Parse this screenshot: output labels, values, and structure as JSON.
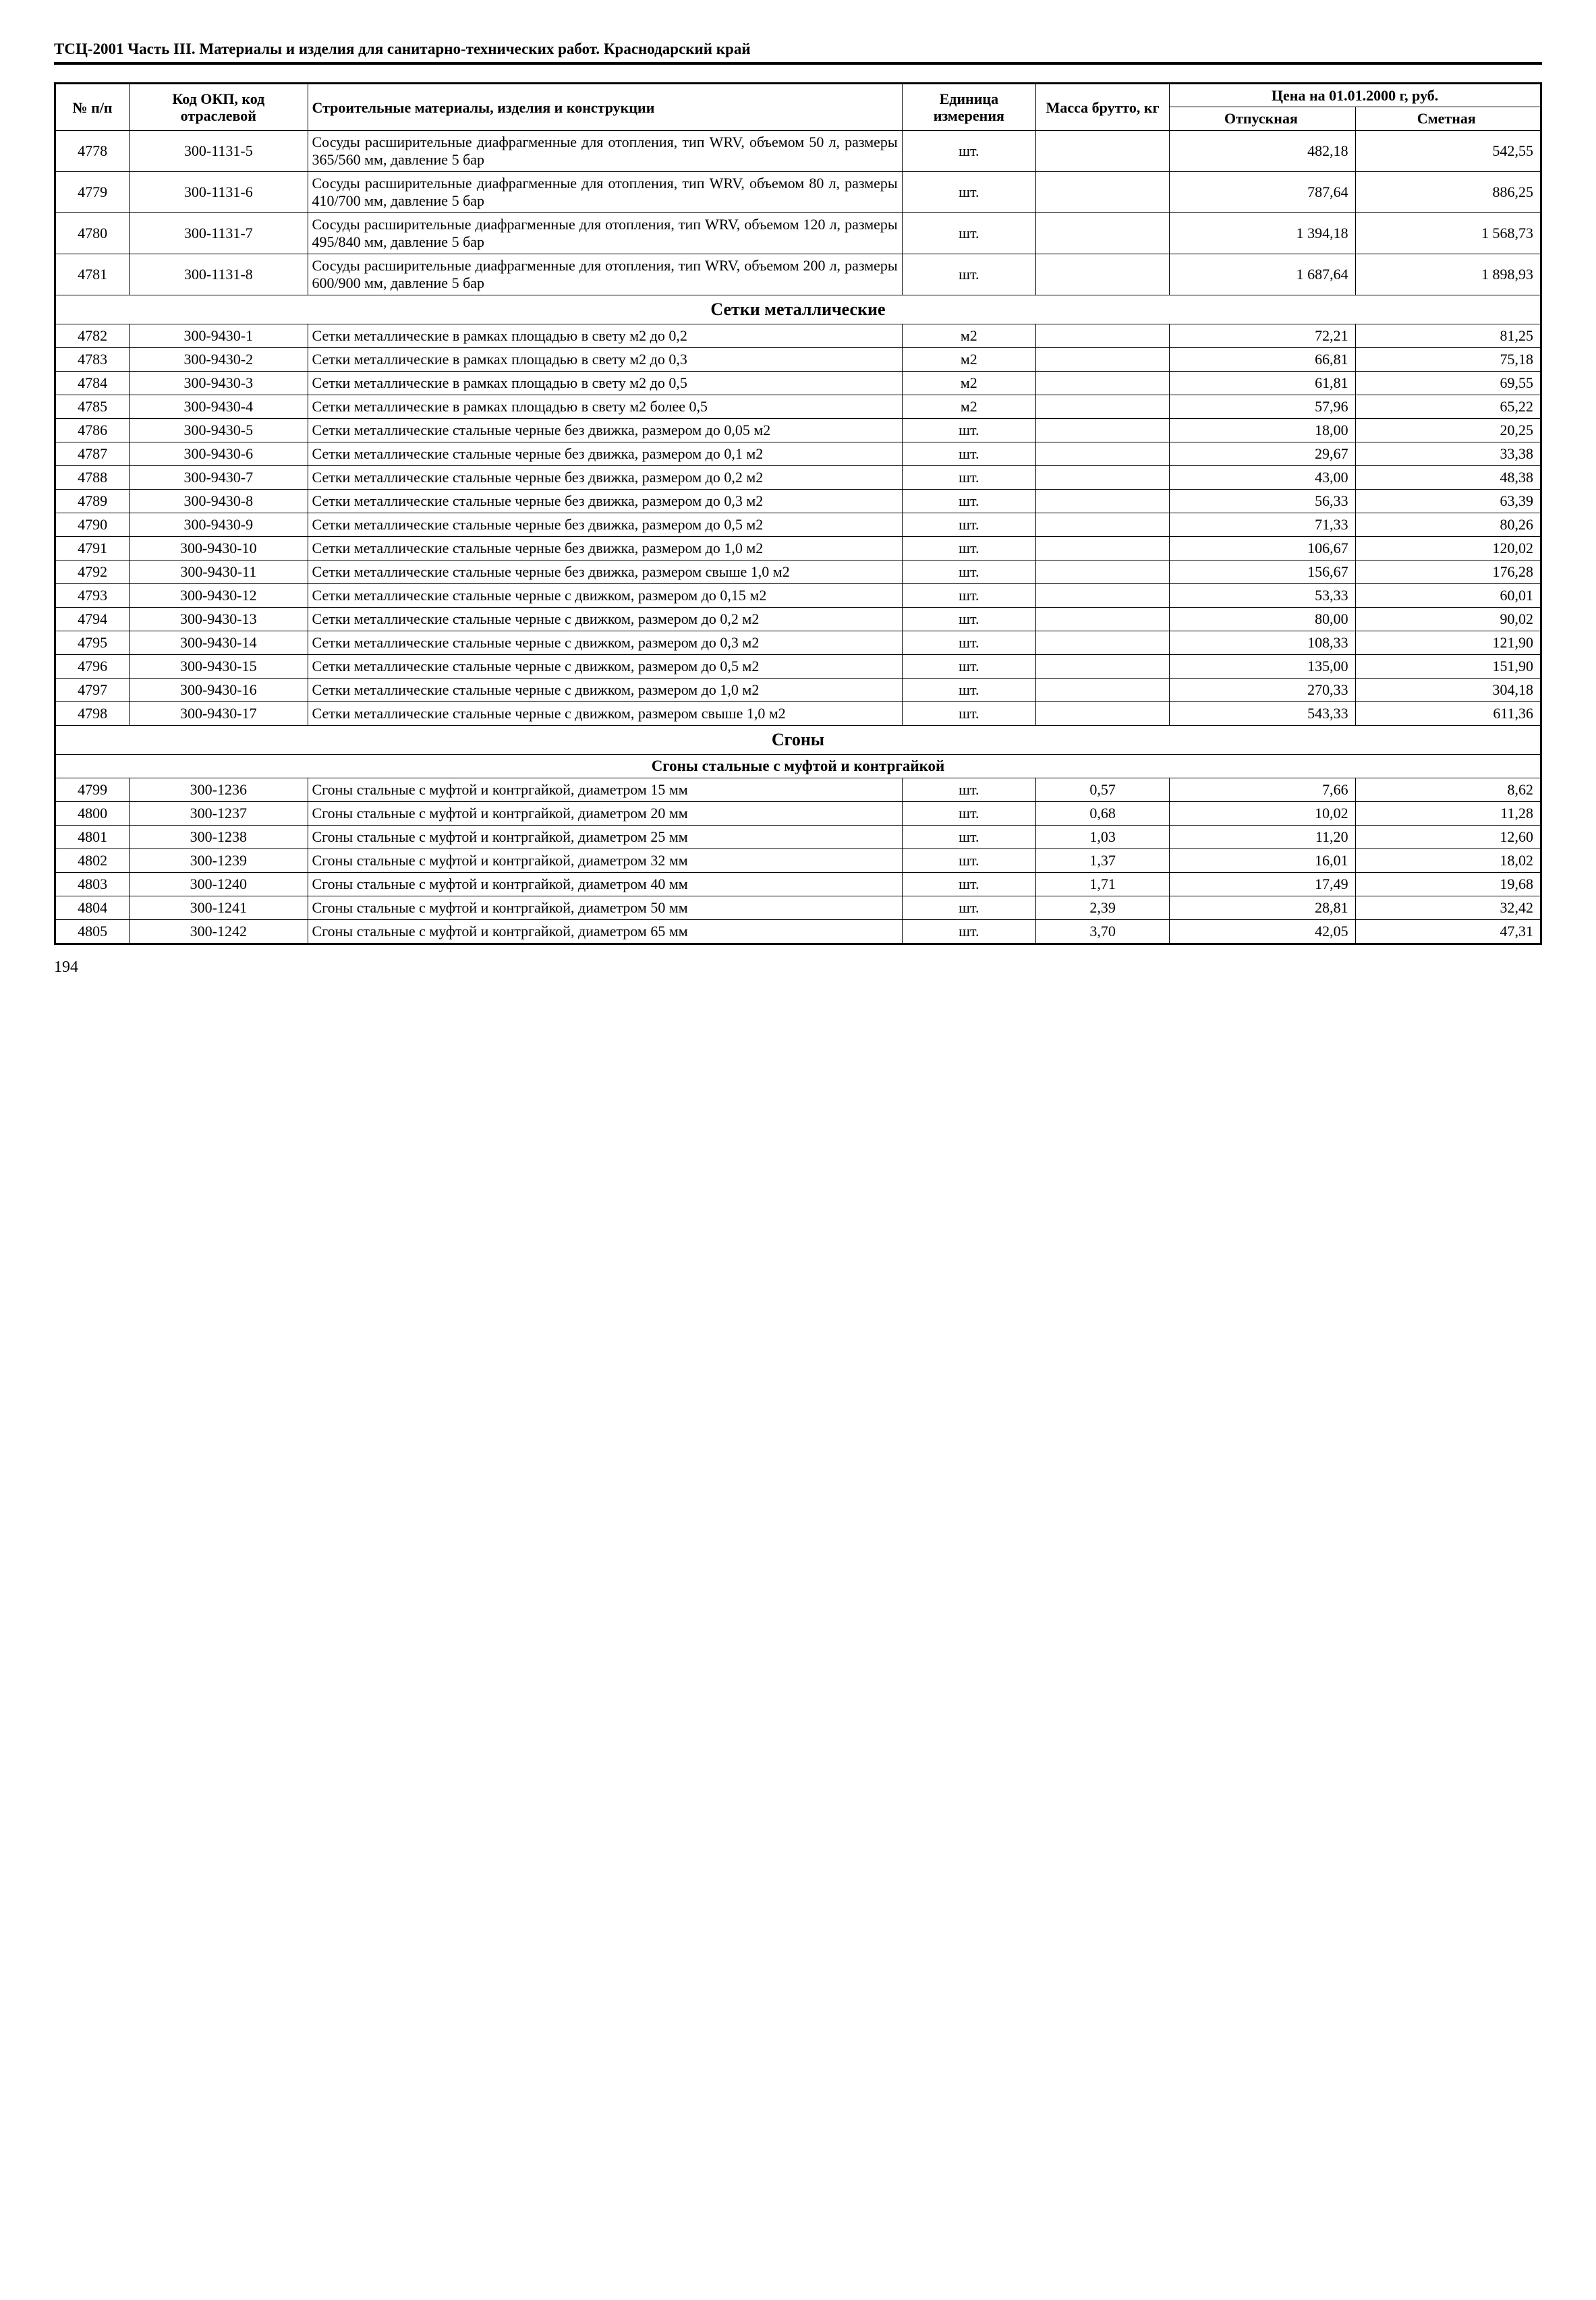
{
  "header_title": "ТСЦ-2001 Часть III. Материалы и изделия для санитарно-технических работ.  Краснодарский край",
  "page_number": "194",
  "columns": {
    "num": "№ п/п",
    "code": "Код ОКП, код отраслевой",
    "name": "Строительные материалы, изделия и конструкции",
    "unit": "Единица измерения",
    "mass": "Масса брутто, кг",
    "price_group": "Цена на 01.01.2000 г, руб.",
    "price_release": "Отпускная",
    "price_estimate": "Сметная"
  },
  "rows": [
    {
      "type": "data",
      "num": "4778",
      "code": "300-1131-5",
      "name": "Сосуды расширительные диафрагменные для отопления, тип WRV, объемом 50 л, размеры 365/560 мм, давление 5 бар",
      "unit": "шт.",
      "mass": "",
      "p1": "482,18",
      "p2": "542,55"
    },
    {
      "type": "data",
      "num": "4779",
      "code": "300-1131-6",
      "name": "Сосуды расширительные диафрагменные для отопления, тип WRV, объемом 80 л, размеры 410/700 мм, давление 5 бар",
      "unit": "шт.",
      "mass": "",
      "p1": "787,64",
      "p2": "886,25"
    },
    {
      "type": "data",
      "num": "4780",
      "code": "300-1131-7",
      "name": "Сосуды расширительные диафрагменные для отопления, тип WRV, объемом 120 л, размеры 495/840 мм, давление 5 бар",
      "unit": "шт.",
      "mass": "",
      "p1": "1 394,18",
      "p2": "1 568,73"
    },
    {
      "type": "data",
      "num": "4781",
      "code": "300-1131-8",
      "name": "Сосуды расширительные диафрагменные для отопления, тип WRV, объемом 200 л, размеры 600/900 мм, давление 5 бар",
      "unit": "шт.",
      "mass": "",
      "p1": "1 687,64",
      "p2": "1 898,93"
    },
    {
      "type": "section",
      "title": "Сетки металлические"
    },
    {
      "type": "data",
      "num": "4782",
      "code": "300-9430-1",
      "name": "Сетки металлические в рамках площадью в свету м2 до 0,2",
      "unit": "м2",
      "mass": "",
      "p1": "72,21",
      "p2": "81,25"
    },
    {
      "type": "data",
      "num": "4783",
      "code": "300-9430-2",
      "name": "Сетки металлические в рамках площадью в свету м2 до 0,3",
      "unit": "м2",
      "mass": "",
      "p1": "66,81",
      "p2": "75,18"
    },
    {
      "type": "data",
      "num": "4784",
      "code": "300-9430-3",
      "name": "Сетки металлические в рамках площадью в свету м2 до 0,5",
      "unit": "м2",
      "mass": "",
      "p1": "61,81",
      "p2": "69,55"
    },
    {
      "type": "data",
      "num": "4785",
      "code": "300-9430-4",
      "name": "Сетки металлические в рамках площадью в свету м2 более 0,5",
      "unit": "м2",
      "mass": "",
      "p1": "57,96",
      "p2": "65,22"
    },
    {
      "type": "data",
      "num": "4786",
      "code": "300-9430-5",
      "name": "Сетки металлические стальные черные без движка, размером до 0,05 м2",
      "unit": "шт.",
      "mass": "",
      "p1": "18,00",
      "p2": "20,25"
    },
    {
      "type": "data",
      "num": "4787",
      "code": "300-9430-6",
      "name": "Сетки металлические стальные черные без движка, размером до 0,1 м2",
      "unit": "шт.",
      "mass": "",
      "p1": "29,67",
      "p2": "33,38"
    },
    {
      "type": "data",
      "num": "4788",
      "code": "300-9430-7",
      "name": "Сетки металлические стальные черные без движка, размером до 0,2 м2",
      "unit": "шт.",
      "mass": "",
      "p1": "43,00",
      "p2": "48,38"
    },
    {
      "type": "data",
      "num": "4789",
      "code": "300-9430-8",
      "name": "Сетки металлические стальные черные без движка, размером до 0,3 м2",
      "unit": "шт.",
      "mass": "",
      "p1": "56,33",
      "p2": "63,39"
    },
    {
      "type": "data",
      "num": "4790",
      "code": "300-9430-9",
      "name": "Сетки металлические стальные черные без движка, размером до 0,5 м2",
      "unit": "шт.",
      "mass": "",
      "p1": "71,33",
      "p2": "80,26"
    },
    {
      "type": "data",
      "num": "4791",
      "code": "300-9430-10",
      "name": "Сетки металлические стальные черные без движка, размером до 1,0 м2",
      "unit": "шт.",
      "mass": "",
      "p1": "106,67",
      "p2": "120,02"
    },
    {
      "type": "data",
      "num": "4792",
      "code": "300-9430-11",
      "name": "Сетки металлические стальные черные без движка, размером свыше 1,0 м2",
      "unit": "шт.",
      "mass": "",
      "p1": "156,67",
      "p2": "176,28"
    },
    {
      "type": "data",
      "num": "4793",
      "code": "300-9430-12",
      "name": "Сетки металлические стальные черные с движком, размером до 0,15 м2",
      "unit": "шт.",
      "mass": "",
      "p1": "53,33",
      "p2": "60,01"
    },
    {
      "type": "data",
      "num": "4794",
      "code": "300-9430-13",
      "name": "Сетки металлические стальные черные с движком, размером до 0,2 м2",
      "unit": "шт.",
      "mass": "",
      "p1": "80,00",
      "p2": "90,02"
    },
    {
      "type": "data",
      "num": "4795",
      "code": "300-9430-14",
      "name": "Сетки металлические стальные черные с движком, размером до 0,3 м2",
      "unit": "шт.",
      "mass": "",
      "p1": "108,33",
      "p2": "121,90"
    },
    {
      "type": "data",
      "num": "4796",
      "code": "300-9430-15",
      "name": "Сетки металлические стальные черные с движком, размером до 0,5 м2",
      "unit": "шт.",
      "mass": "",
      "p1": "135,00",
      "p2": "151,90"
    },
    {
      "type": "data",
      "num": "4797",
      "code": "300-9430-16",
      "name": "Сетки металлические стальные черные с движком, размером до 1,0 м2",
      "unit": "шт.",
      "mass": "",
      "p1": "270,33",
      "p2": "304,18"
    },
    {
      "type": "data",
      "num": "4798",
      "code": "300-9430-17",
      "name": "Сетки металлические стальные черные с движком, размером свыше 1,0 м2",
      "unit": "шт.",
      "mass": "",
      "p1": "543,33",
      "p2": "611,36"
    },
    {
      "type": "section",
      "title": "Сгоны"
    },
    {
      "type": "subsection",
      "title": "Сгоны стальные с муфтой и контргайкой"
    },
    {
      "type": "data",
      "num": "4799",
      "code": "300-1236",
      "name": "Сгоны стальные с муфтой и контргайкой, диаметром 15 мм",
      "unit": "шт.",
      "mass": "0,57",
      "p1": "7,66",
      "p2": "8,62"
    },
    {
      "type": "data",
      "num": "4800",
      "code": "300-1237",
      "name": "Сгоны стальные с муфтой и контргайкой, диаметром 20 мм",
      "unit": "шт.",
      "mass": "0,68",
      "p1": "10,02",
      "p2": "11,28"
    },
    {
      "type": "data",
      "num": "4801",
      "code": "300-1238",
      "name": "Сгоны стальные с муфтой и контргайкой, диаметром 25 мм",
      "unit": "шт.",
      "mass": "1,03",
      "p1": "11,20",
      "p2": "12,60"
    },
    {
      "type": "data",
      "num": "4802",
      "code": "300-1239",
      "name": "Сгоны стальные с муфтой и контргайкой, диаметром 32 мм",
      "unit": "шт.",
      "mass": "1,37",
      "p1": "16,01",
      "p2": "18,02"
    },
    {
      "type": "data",
      "num": "4803",
      "code": "300-1240",
      "name": "Сгоны стальные с муфтой и контргайкой, диаметром 40 мм",
      "unit": "шт.",
      "mass": "1,71",
      "p1": "17,49",
      "p2": "19,68"
    },
    {
      "type": "data",
      "num": "4804",
      "code": "300-1241",
      "name": "Сгоны стальные с муфтой и контргайкой, диаметром 50 мм",
      "unit": "шт.",
      "mass": "2,39",
      "p1": "28,81",
      "p2": "32,42"
    },
    {
      "type": "data",
      "num": "4805",
      "code": "300-1242",
      "name": "Сгоны стальные с муфтой и контргайкой, диаметром 65 мм",
      "unit": "шт.",
      "mass": "3,70",
      "p1": "42,05",
      "p2": "47,31"
    }
  ]
}
